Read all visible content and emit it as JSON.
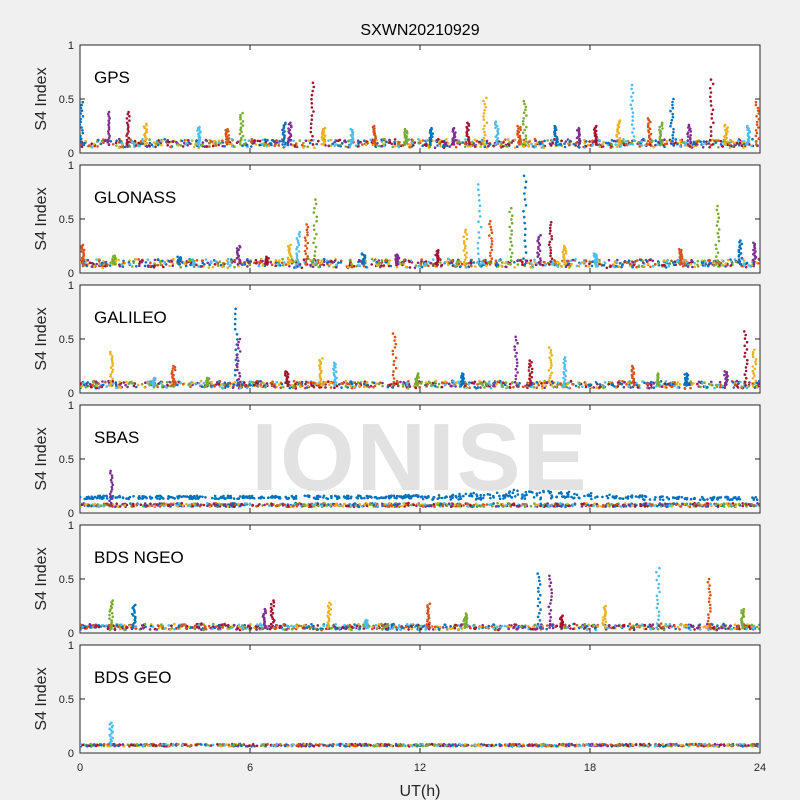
{
  "chart_data": {
    "type": "scatter",
    "title": "SXWN20210929",
    "xlabel": "UT(h)",
    "xlim": [
      0,
      24
    ],
    "xticks": [
      0,
      6,
      12,
      18,
      24
    ],
    "watermark": "IONISE",
    "series_colors": [
      "#0072BD",
      "#D95319",
      "#EDB120",
      "#7E2F8E",
      "#77AC30",
      "#4DBEEE",
      "#A2142F"
    ],
    "panels": [
      {
        "label": "GPS",
        "ylabel": "S4 Index",
        "ylim": [
          0,
          1
        ],
        "yticks": [
          0,
          0.5,
          1
        ],
        "baseline": 0.08,
        "noise": 0.035,
        "spikes": [
          [
            0.05,
            0.47
          ],
          [
            1.0,
            0.38
          ],
          [
            1.7,
            0.38
          ],
          [
            2.3,
            0.27
          ],
          [
            4.2,
            0.24
          ],
          [
            5.2,
            0.22
          ],
          [
            5.7,
            0.37
          ],
          [
            7.2,
            0.28
          ],
          [
            7.4,
            0.28
          ],
          [
            8.2,
            0.65
          ],
          [
            8.6,
            0.23
          ],
          [
            9.6,
            0.22
          ],
          [
            10.4,
            0.25
          ],
          [
            11.5,
            0.22
          ],
          [
            12.4,
            0.23
          ],
          [
            13.2,
            0.23
          ],
          [
            13.7,
            0.28
          ],
          [
            14.3,
            0.51
          ],
          [
            14.7,
            0.29
          ],
          [
            15.5,
            0.25
          ],
          [
            15.7,
            0.48
          ],
          [
            16.8,
            0.25
          ],
          [
            17.6,
            0.23
          ],
          [
            18.2,
            0.25
          ],
          [
            19.0,
            0.3
          ],
          [
            19.5,
            0.63
          ],
          [
            20.1,
            0.32
          ],
          [
            20.5,
            0.28
          ],
          [
            20.9,
            0.5
          ],
          [
            21.5,
            0.26
          ],
          [
            22.3,
            0.68
          ],
          [
            22.8,
            0.26
          ],
          [
            23.6,
            0.25
          ],
          [
            23.9,
            0.47
          ]
        ]
      },
      {
        "label": "GLONASS",
        "ylabel": "S4 Index",
        "ylim": [
          0,
          1
        ],
        "yticks": [
          0,
          0.5,
          1
        ],
        "baseline": 0.08,
        "noise": 0.035,
        "spikes": [
          [
            0.1,
            0.26
          ],
          [
            1.2,
            0.16
          ],
          [
            3.5,
            0.15
          ],
          [
            5.6,
            0.25
          ],
          [
            6.6,
            0.15
          ],
          [
            7.4,
            0.26
          ],
          [
            7.7,
            0.38
          ],
          [
            8.0,
            0.45
          ],
          [
            8.3,
            0.68
          ],
          [
            10.0,
            0.18
          ],
          [
            11.2,
            0.17
          ],
          [
            12.6,
            0.21
          ],
          [
            13.6,
            0.4
          ],
          [
            14.1,
            0.82
          ],
          [
            14.5,
            0.48
          ],
          [
            15.2,
            0.6
          ],
          [
            15.7,
            0.9
          ],
          [
            16.2,
            0.35
          ],
          [
            16.6,
            0.47
          ],
          [
            17.1,
            0.25
          ],
          [
            18.2,
            0.18
          ],
          [
            21.2,
            0.22
          ],
          [
            22.5,
            0.62
          ],
          [
            23.3,
            0.3
          ],
          [
            23.8,
            0.28
          ]
        ]
      },
      {
        "label": "GALILEO",
        "ylabel": "S4 Index",
        "ylim": [
          0,
          1
        ],
        "yticks": [
          0,
          0.5,
          1
        ],
        "baseline": 0.07,
        "noise": 0.03,
        "spikes": [
          [
            1.1,
            0.38
          ],
          [
            2.6,
            0.14
          ],
          [
            3.3,
            0.25
          ],
          [
            4.5,
            0.14
          ],
          [
            5.5,
            0.78
          ],
          [
            5.6,
            0.5
          ],
          [
            7.3,
            0.2
          ],
          [
            8.5,
            0.32
          ],
          [
            9.0,
            0.28
          ],
          [
            11.1,
            0.55
          ],
          [
            11.9,
            0.18
          ],
          [
            13.5,
            0.18
          ],
          [
            15.4,
            0.52
          ],
          [
            15.9,
            0.3
          ],
          [
            16.6,
            0.42
          ],
          [
            17.1,
            0.33
          ],
          [
            19.5,
            0.25
          ],
          [
            20.4,
            0.18
          ],
          [
            21.4,
            0.18
          ],
          [
            22.8,
            0.2
          ],
          [
            23.5,
            0.57
          ],
          [
            23.8,
            0.4
          ]
        ]
      },
      {
        "label": "SBAS",
        "ylabel": "S4 Index",
        "ylim": [
          0,
          1
        ],
        "yticks": [
          0,
          0.5,
          1
        ],
        "baseline": 0.07,
        "noise": 0.015,
        "spikes": [
          [
            1.1,
            0.39
          ]
        ],
        "band": [
          0.12,
          0.2
        ]
      },
      {
        "label": "BDS NGEO",
        "ylabel": "S4 Index",
        "ylim": [
          0,
          1
        ],
        "yticks": [
          0,
          0.5,
          1
        ],
        "baseline": 0.05,
        "noise": 0.025,
        "spikes": [
          [
            1.1,
            0.3
          ],
          [
            1.9,
            0.26
          ],
          [
            6.5,
            0.22
          ],
          [
            6.8,
            0.3
          ],
          [
            8.8,
            0.28
          ],
          [
            10.1,
            0.12
          ],
          [
            12.3,
            0.27
          ],
          [
            13.6,
            0.18
          ],
          [
            16.2,
            0.55
          ],
          [
            16.6,
            0.53
          ],
          [
            17.0,
            0.16
          ],
          [
            18.5,
            0.25
          ],
          [
            20.4,
            0.6
          ],
          [
            22.2,
            0.5
          ],
          [
            23.4,
            0.22
          ]
        ]
      },
      {
        "label": "BDS GEO",
        "ylabel": "S4 Index",
        "ylim": [
          0,
          1
        ],
        "yticks": [
          0,
          0.5,
          1
        ],
        "baseline": 0.07,
        "noise": 0.01,
        "spikes": [
          [
            1.1,
            0.28
          ]
        ]
      }
    ]
  }
}
